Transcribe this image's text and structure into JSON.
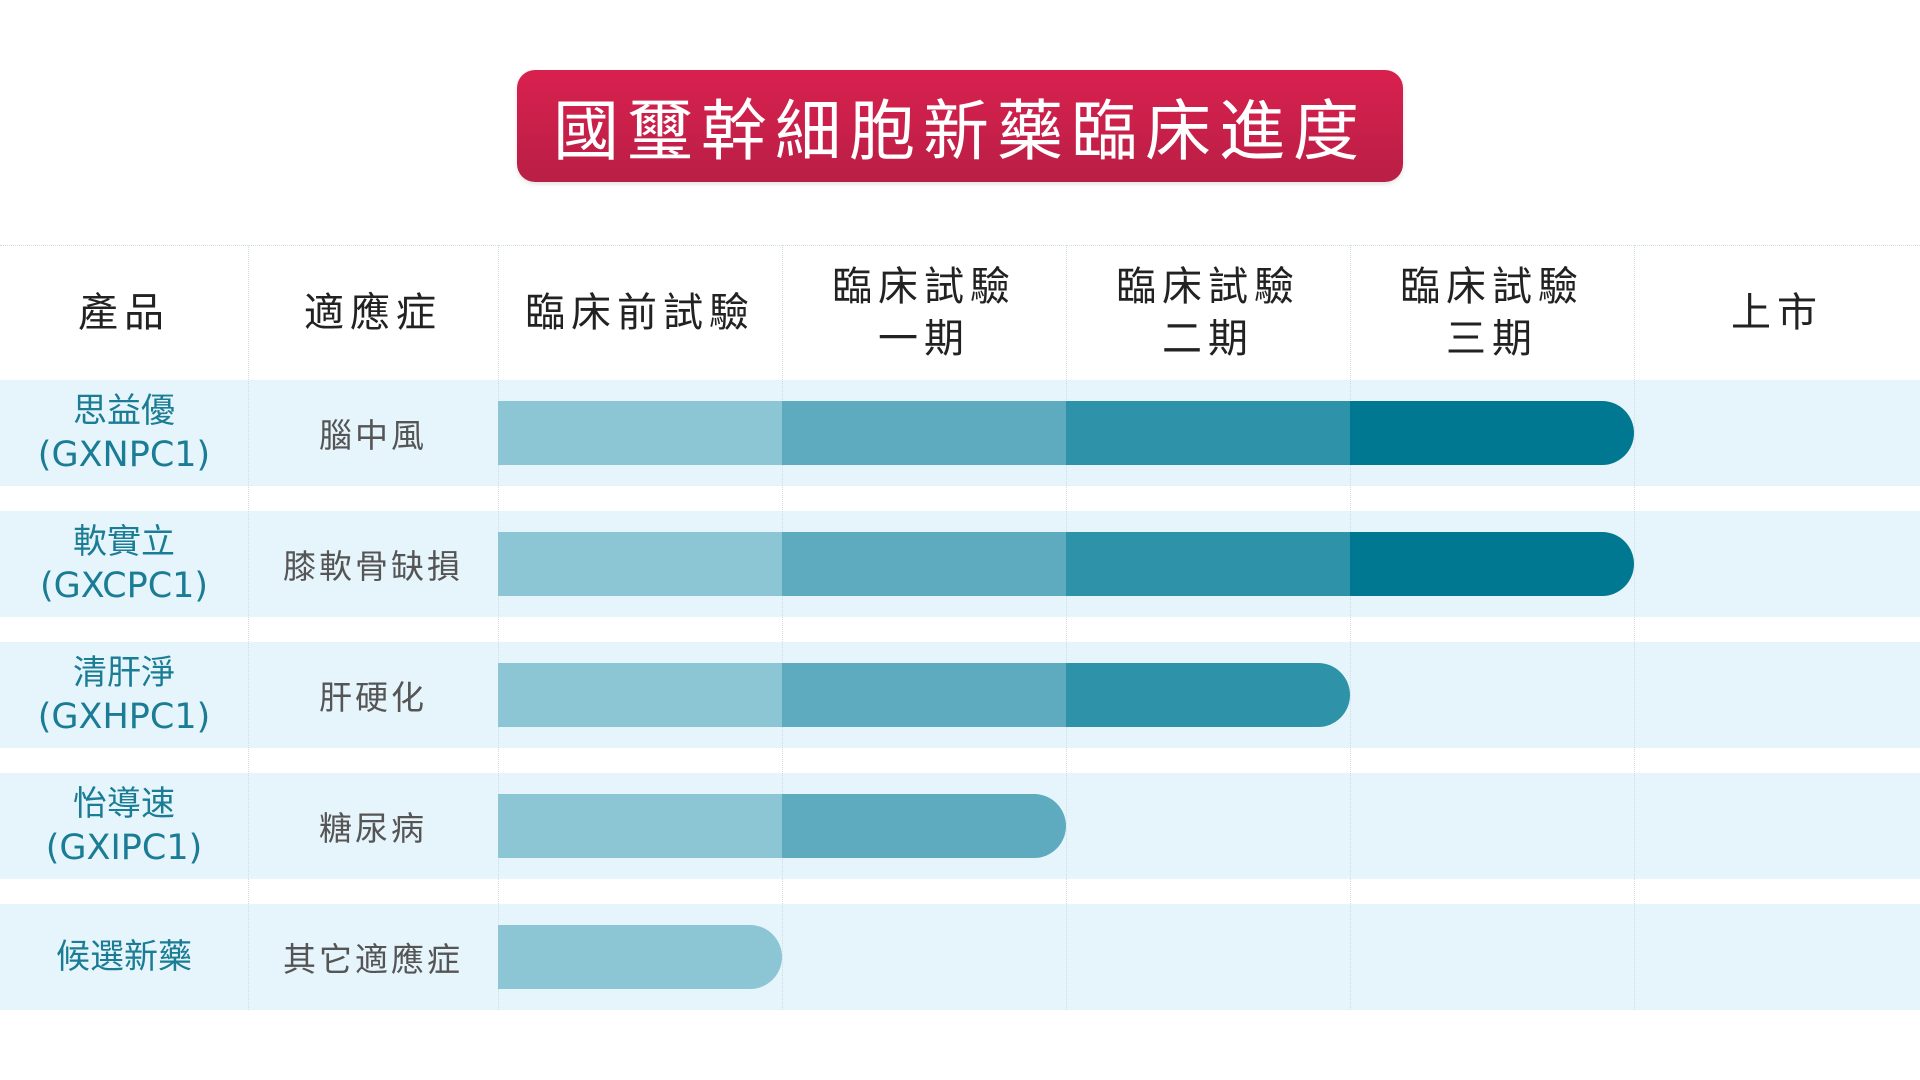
{
  "title": "國璽幹細胞新藥臨床進度",
  "colors": {
    "banner": "#c91f4a",
    "band": "#e6f5fb",
    "stage": [
      "#8cc5d3",
      "#5eabbf",
      "#2e92a8",
      "#017891"
    ],
    "product_text": "#1a7c95"
  },
  "chart_data": {
    "type": "bar",
    "headers": {
      "product": "產品",
      "indication": "適應症",
      "stages": [
        {
          "line1": "臨床前試驗",
          "line2": ""
        },
        {
          "line1": "臨床試驗",
          "line2": "一期"
        },
        {
          "line1": "臨床試驗",
          "line2": "二期"
        },
        {
          "line1": "臨床試驗",
          "line2": "三期"
        },
        {
          "line1": "上市",
          "line2": ""
        }
      ]
    },
    "rows": [
      {
        "name": "思益優",
        "code": "(GXNPC1)",
        "indication": "腦中風",
        "stages_reached": 4
      },
      {
        "name": "軟實立",
        "code": "(GXCPC1)",
        "indication": "膝軟骨缺損",
        "stages_reached": 4
      },
      {
        "name": "清肝淨",
        "code": "(GXHPC1)",
        "indication": "肝硬化",
        "stages_reached": 3
      },
      {
        "name": "怡導速",
        "code": "(GXIPC1)",
        "indication": "糖尿病",
        "stages_reached": 2
      },
      {
        "name": "候選新藥",
        "code": "",
        "indication": "其它適應症",
        "stages_reached": 1
      }
    ]
  }
}
